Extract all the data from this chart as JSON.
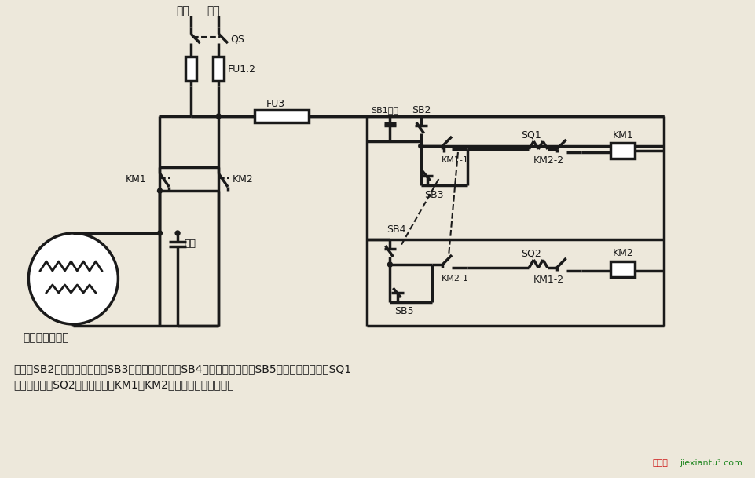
{
  "bg_color": "#ede8db",
  "lc": "#1a1a1a",
  "lw": 2.5,
  "desc_line1": "说明：SB2为上升启动按鈕，SB3为上升点动按鈕，SB4为下降启动按鈕，SB5为下降点动按鈕；SQ1",
  "desc_line2": "为最高限位，SQ2为最低限位。KM1、KM2可用中间继电器代替。",
  "motor_label": "单相电容电动机",
  "cap_label": "电容",
  "lbl_huoxian": "火线",
  "lbl_lingxian": "零线",
  "lbl_QS": "QS",
  "lbl_FU12": "FU1.2",
  "lbl_FU3": "FU3",
  "lbl_SB1": "SB1停止",
  "lbl_SB2": "SB2",
  "lbl_SB3": "SB3",
  "lbl_SB4": "SB4",
  "lbl_SB5": "SB5",
  "lbl_KM1": "KM1",
  "lbl_KM2": "KM2",
  "lbl_KM11": "KM1-1",
  "lbl_KM21": "KM2-1",
  "lbl_KM22": "KM2-2",
  "lbl_KM12": "KM1-2",
  "lbl_SQ1": "SQ1",
  "lbl_SQ2": "SQ2",
  "wm_red": "接线图",
  "wm_green": "jiexiantu",
  "wm_super": "²",
  "wm_com": " com"
}
